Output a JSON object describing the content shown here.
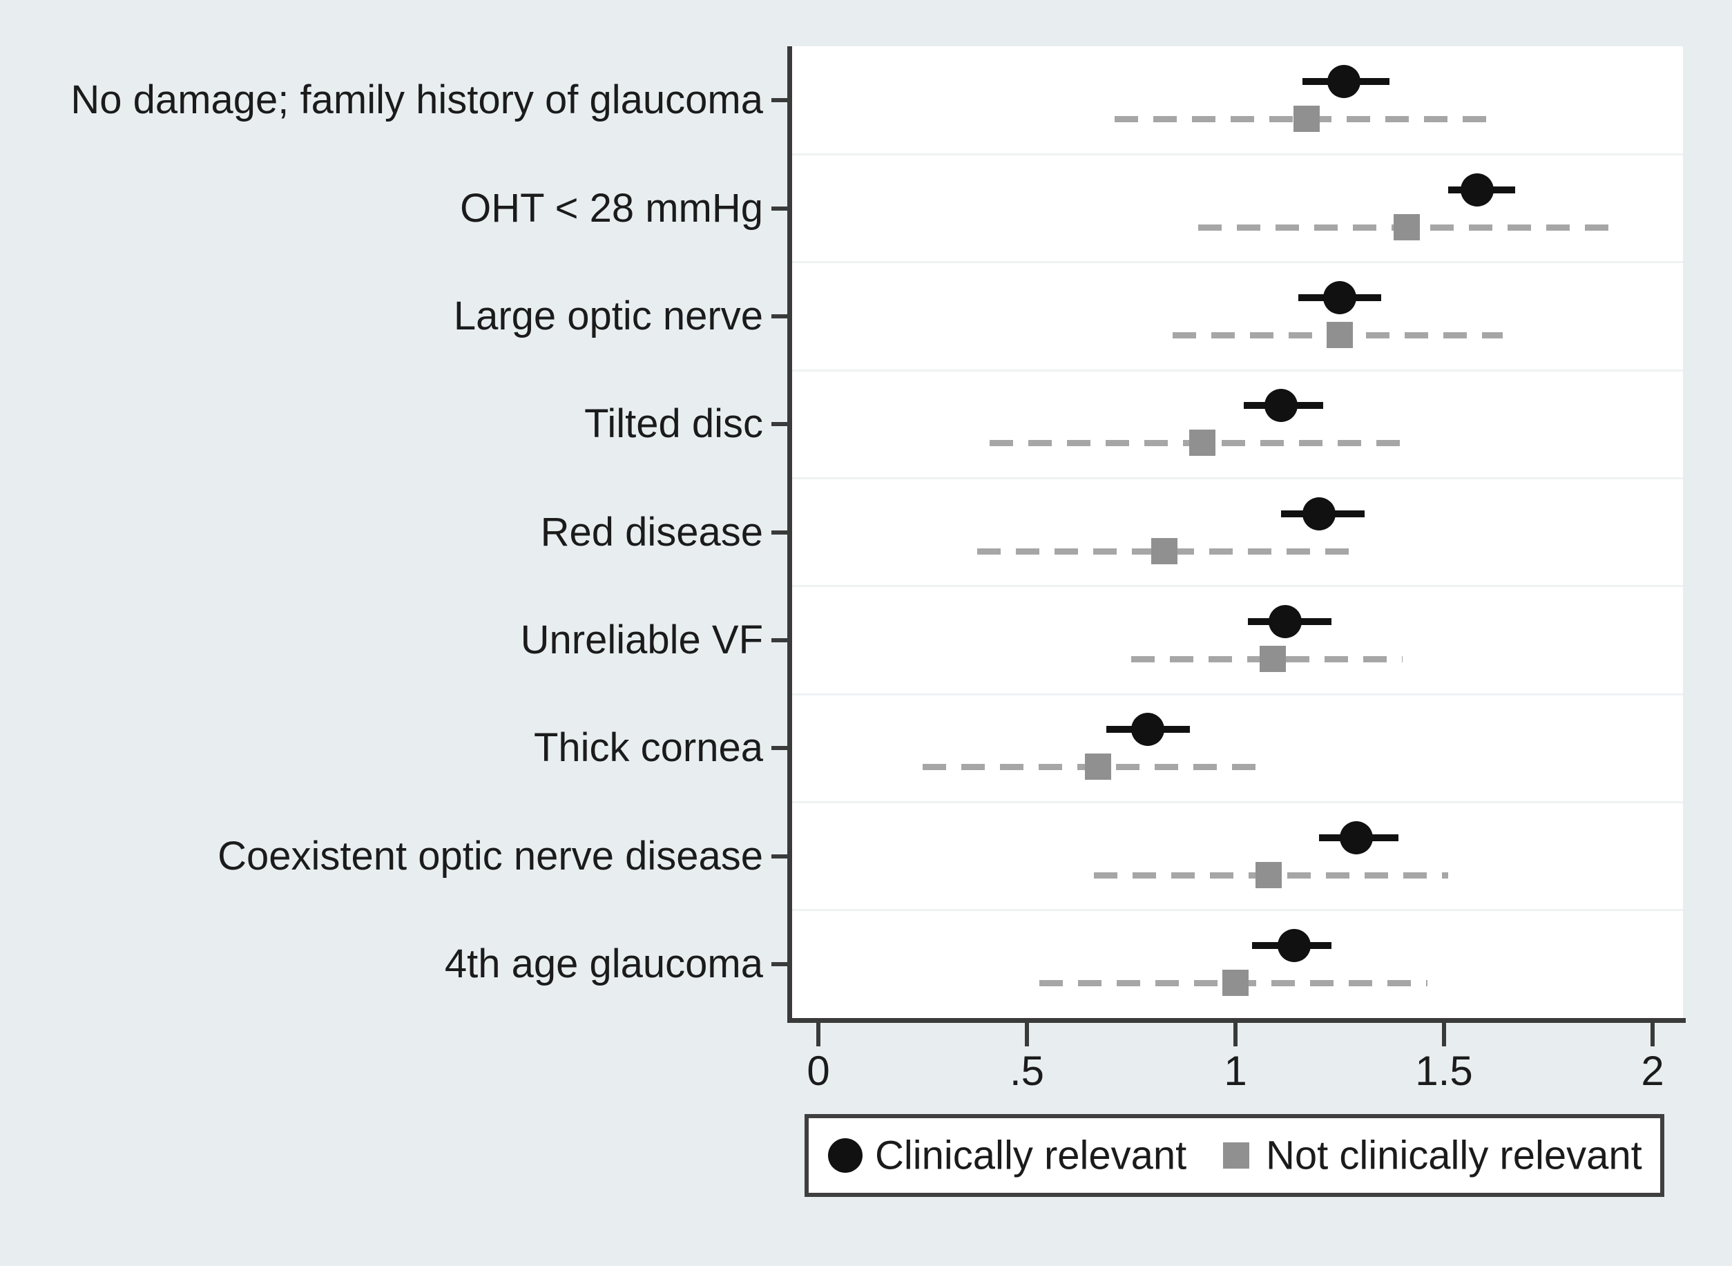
{
  "figure": {
    "background_color": "#e8eef0",
    "plot_background_color": "#ffffff",
    "axis_color": "#3a3a3a",
    "separator_color": "#eef2f3",
    "clinical_color": "#111111",
    "nonclinical_color": "#909090",
    "dash_color": "#a6a6a6"
  },
  "legend": {
    "items": [
      {
        "marker": "circle-icon",
        "color": "#111111",
        "label": "Clinically relevant"
      },
      {
        "marker": "square-icon",
        "color": "#909090",
        "label": "Not clinically relevant"
      }
    ]
  },
  "chart_data": {
    "type": "scatter",
    "subtype": "forest-plot",
    "orientation": "horizontal",
    "title": "",
    "xlabel": "",
    "ylabel": "",
    "grid": "category-separators",
    "legend_position": "bottom",
    "x_range_visible": [
      -0.065,
      2.073
    ],
    "x_ticks": [
      {
        "label": "0",
        "value": 0
      },
      {
        "label": ".5",
        "value": 0.5
      },
      {
        "label": "1",
        "value": 1
      },
      {
        "label": "1.5",
        "value": 1.5
      },
      {
        "label": "2",
        "value": 2
      }
    ],
    "categories": [
      "No damage; family history of glaucoma",
      "OHT < 28 mmHg",
      "Large optic nerve",
      "Tilted disc",
      "Red disease",
      "Unreliable VF",
      "Thick cornea",
      "Coexistent optic nerve disease",
      "4th age glaucoma"
    ],
    "series": [
      {
        "name": "Clinically relevant",
        "marker": "circle",
        "ci_line": "solid",
        "points": [
          {
            "value": 1.26,
            "ci_low": 1.16,
            "ci_high": 1.37
          },
          {
            "value": 1.58,
            "ci_low": 1.51,
            "ci_high": 1.67
          },
          {
            "value": 1.25,
            "ci_low": 1.15,
            "ci_high": 1.35
          },
          {
            "value": 1.11,
            "ci_low": 1.02,
            "ci_high": 1.21
          },
          {
            "value": 1.2,
            "ci_low": 1.11,
            "ci_high": 1.31
          },
          {
            "value": 1.12,
            "ci_low": 1.03,
            "ci_high": 1.23
          },
          {
            "value": 0.79,
            "ci_low": 0.69,
            "ci_high": 0.89
          },
          {
            "value": 1.29,
            "ci_low": 1.2,
            "ci_high": 1.39
          },
          {
            "value": 1.14,
            "ci_low": 1.04,
            "ci_high": 1.23
          }
        ]
      },
      {
        "name": "Not clinically relevant",
        "marker": "square",
        "ci_line": "dashed",
        "points": [
          {
            "value": 1.17,
            "ci_low": 0.71,
            "ci_high": 1.62
          },
          {
            "value": 1.41,
            "ci_low": 0.91,
            "ci_high": 1.91
          },
          {
            "value": 1.25,
            "ci_low": 0.85,
            "ci_high": 1.64
          },
          {
            "value": 0.92,
            "ci_low": 0.41,
            "ci_high": 1.41
          },
          {
            "value": 0.83,
            "ci_low": 0.38,
            "ci_high": 1.28
          },
          {
            "value": 1.09,
            "ci_low": 0.75,
            "ci_high": 1.4
          },
          {
            "value": 0.67,
            "ci_low": 0.25,
            "ci_high": 1.07
          },
          {
            "value": 1.08,
            "ci_low": 0.66,
            "ci_high": 1.51
          },
          {
            "value": 1.0,
            "ci_low": 0.53,
            "ci_high": 1.46
          }
        ]
      }
    ]
  }
}
